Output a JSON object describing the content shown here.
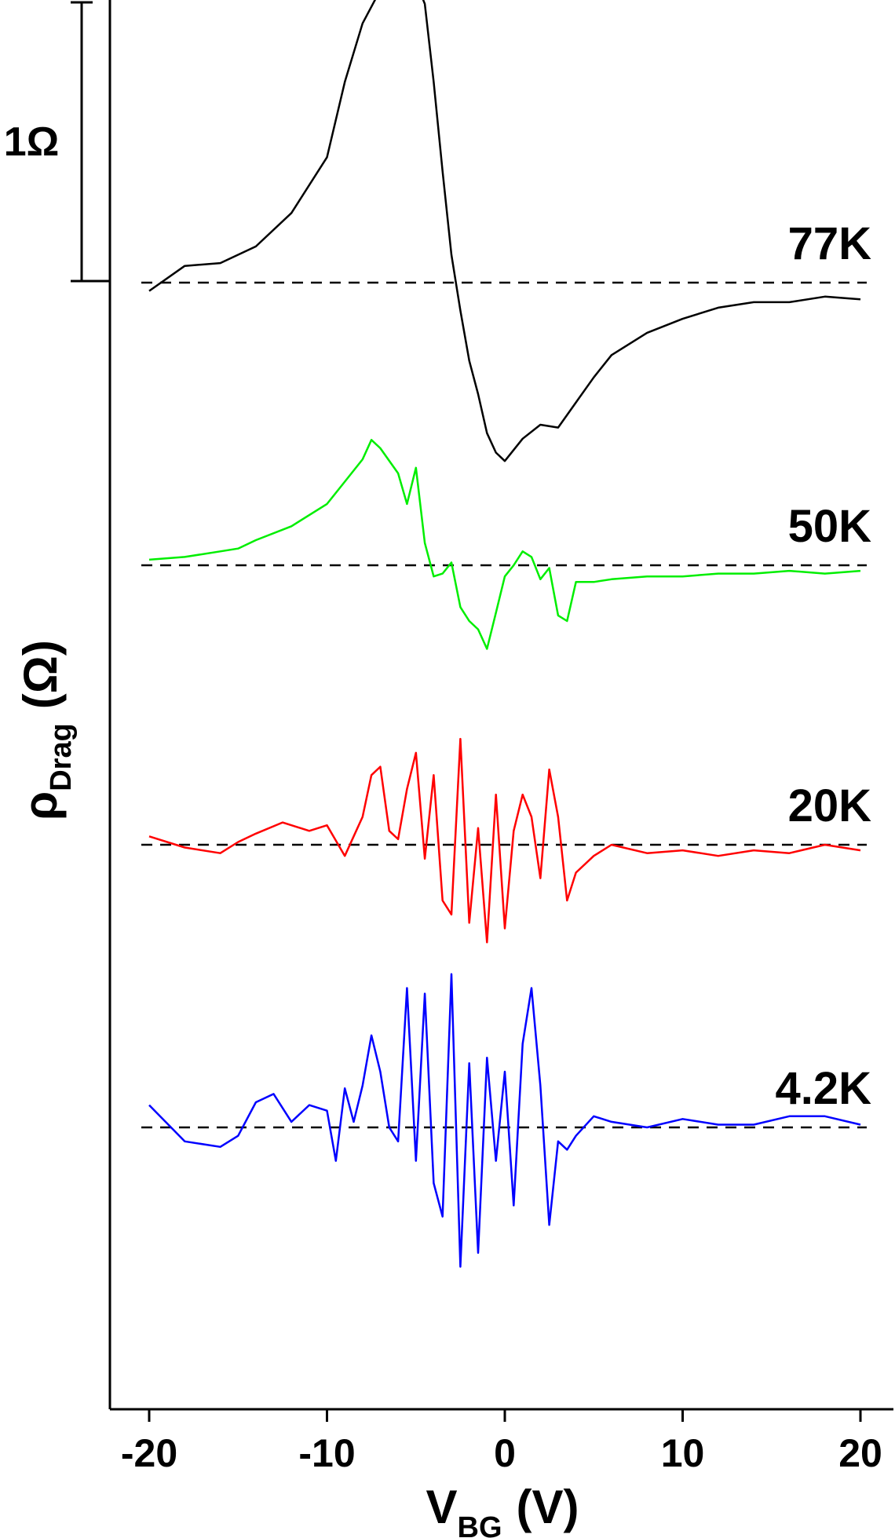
{
  "chart_data": {
    "type": "line",
    "xlabel": {
      "main": "V",
      "sub": "BG",
      "unit": "(V)"
    },
    "ylabel": {
      "main": "ρ",
      "sub": "Drag",
      "unit": "(Ω)"
    },
    "xlim": [
      -22,
      22
    ],
    "xticks": [
      "-20",
      "-10",
      "0",
      "10",
      "20"
    ],
    "xtick_values": [
      -20,
      -10,
      0,
      10,
      20
    ],
    "scale_bar": {
      "label": "1Ω",
      "value": 1
    },
    "grid": false,
    "series": [
      {
        "name": "77K",
        "color": "#000000",
        "offset": 0,
        "x": [
          -20,
          -18,
          -16,
          -14,
          -12,
          -10,
          -9,
          -8,
          -7,
          -6,
          -5,
          -4.5,
          -4,
          -3.5,
          -3,
          -2.5,
          -2,
          -1.5,
          -1,
          -0.5,
          0,
          1,
          2,
          3,
          4,
          5,
          6,
          8,
          10,
          12,
          14,
          16,
          18,
          20
        ],
        "y": [
          -0.03,
          0.06,
          0.07,
          0.13,
          0.25,
          0.45,
          0.72,
          0.93,
          1.05,
          1.08,
          1.08,
          1.0,
          0.72,
          0.4,
          0.1,
          -0.1,
          -0.28,
          -0.4,
          -0.54,
          -0.61,
          -0.64,
          -0.56,
          -0.51,
          -0.52,
          -0.43,
          -0.34,
          -0.26,
          -0.18,
          -0.13,
          -0.09,
          -0.07,
          -0.07,
          -0.05,
          -0.06
        ]
      },
      {
        "name": "50K",
        "color": "#00ee00",
        "offset": 0,
        "x": [
          -20,
          -18,
          -16,
          -15,
          -14,
          -12,
          -10,
          -9,
          -8,
          -7.5,
          -7,
          -6,
          -5.5,
          -5,
          -4.5,
          -4,
          -3.5,
          -3,
          -2.5,
          -2,
          -1.5,
          -1,
          -0.5,
          0,
          0.5,
          1,
          1.5,
          2,
          2.5,
          3,
          3.5,
          4,
          5,
          6,
          8,
          10,
          12,
          14,
          16,
          18,
          20
        ],
        "y": [
          0.02,
          0.03,
          0.05,
          0.06,
          0.09,
          0.14,
          0.22,
          0.3,
          0.38,
          0.45,
          0.42,
          0.33,
          0.22,
          0.35,
          0.08,
          -0.04,
          -0.03,
          0.01,
          -0.15,
          -0.2,
          -0.23,
          -0.3,
          -0.17,
          -0.04,
          0.0,
          0.05,
          0.03,
          -0.05,
          -0.01,
          -0.18,
          -0.2,
          -0.06,
          -0.06,
          -0.05,
          -0.04,
          -0.04,
          -0.03,
          -0.03,
          -0.02,
          -0.03,
          -0.02
        ]
      },
      {
        "name": "20K",
        "color": "#ff0000",
        "offset": 0,
        "x": [
          -20,
          -18,
          -16,
          -15,
          -14,
          -12.5,
          -11,
          -10,
          -9,
          -8.5,
          -8,
          -7.5,
          -7,
          -6.5,
          -6,
          -5.5,
          -5,
          -4.5,
          -4,
          -3.5,
          -3,
          -2.5,
          -2,
          -1.5,
          -1,
          -0.5,
          0,
          0.5,
          1,
          1.5,
          2,
          2.5,
          3,
          3.5,
          4,
          5,
          6,
          8,
          10,
          12,
          14,
          16,
          18,
          20
        ],
        "y": [
          0.03,
          -0.01,
          -0.03,
          0.01,
          0.04,
          0.08,
          0.05,
          0.07,
          -0.04,
          0.03,
          0.1,
          0.25,
          0.28,
          0.05,
          0.02,
          0.2,
          0.33,
          -0.05,
          0.25,
          -0.2,
          -0.25,
          0.38,
          -0.28,
          0.06,
          -0.35,
          0.18,
          -0.3,
          0.05,
          0.18,
          0.1,
          -0.12,
          0.27,
          0.1,
          -0.2,
          -0.1,
          -0.04,
          0.0,
          -0.03,
          -0.02,
          -0.04,
          -0.02,
          -0.03,
          0.0,
          -0.02
        ]
      },
      {
        "name": "4.2K",
        "color": "#0000ff",
        "offset": 0,
        "x": [
          -20,
          -18,
          -16,
          -15,
          -14,
          -13,
          -12,
          -11,
          -10,
          -9.5,
          -9,
          -8.5,
          -8,
          -7.5,
          -7,
          -6.5,
          -6,
          -5.5,
          -5,
          -4.5,
          -4,
          -3.5,
          -3,
          -2.5,
          -2,
          -1.5,
          -1,
          -0.5,
          0,
          0.5,
          1,
          1.5,
          2,
          2.5,
          3,
          3.5,
          4,
          5,
          6,
          8,
          10,
          12,
          14,
          16,
          18,
          20
        ],
        "y": [
          0.08,
          -0.05,
          -0.07,
          -0.03,
          0.09,
          0.12,
          0.02,
          0.08,
          0.06,
          -0.12,
          0.14,
          0.02,
          0.15,
          0.33,
          0.2,
          0.0,
          -0.05,
          0.5,
          -0.12,
          0.48,
          -0.2,
          -0.32,
          0.55,
          -0.5,
          0.23,
          -0.45,
          0.25,
          -0.12,
          0.2,
          -0.28,
          0.3,
          0.5,
          0.15,
          -0.35,
          -0.05,
          -0.08,
          -0.03,
          0.04,
          0.02,
          0.0,
          0.03,
          0.01,
          0.01,
          0.04,
          0.04,
          0.01
        ]
      }
    ]
  }
}
